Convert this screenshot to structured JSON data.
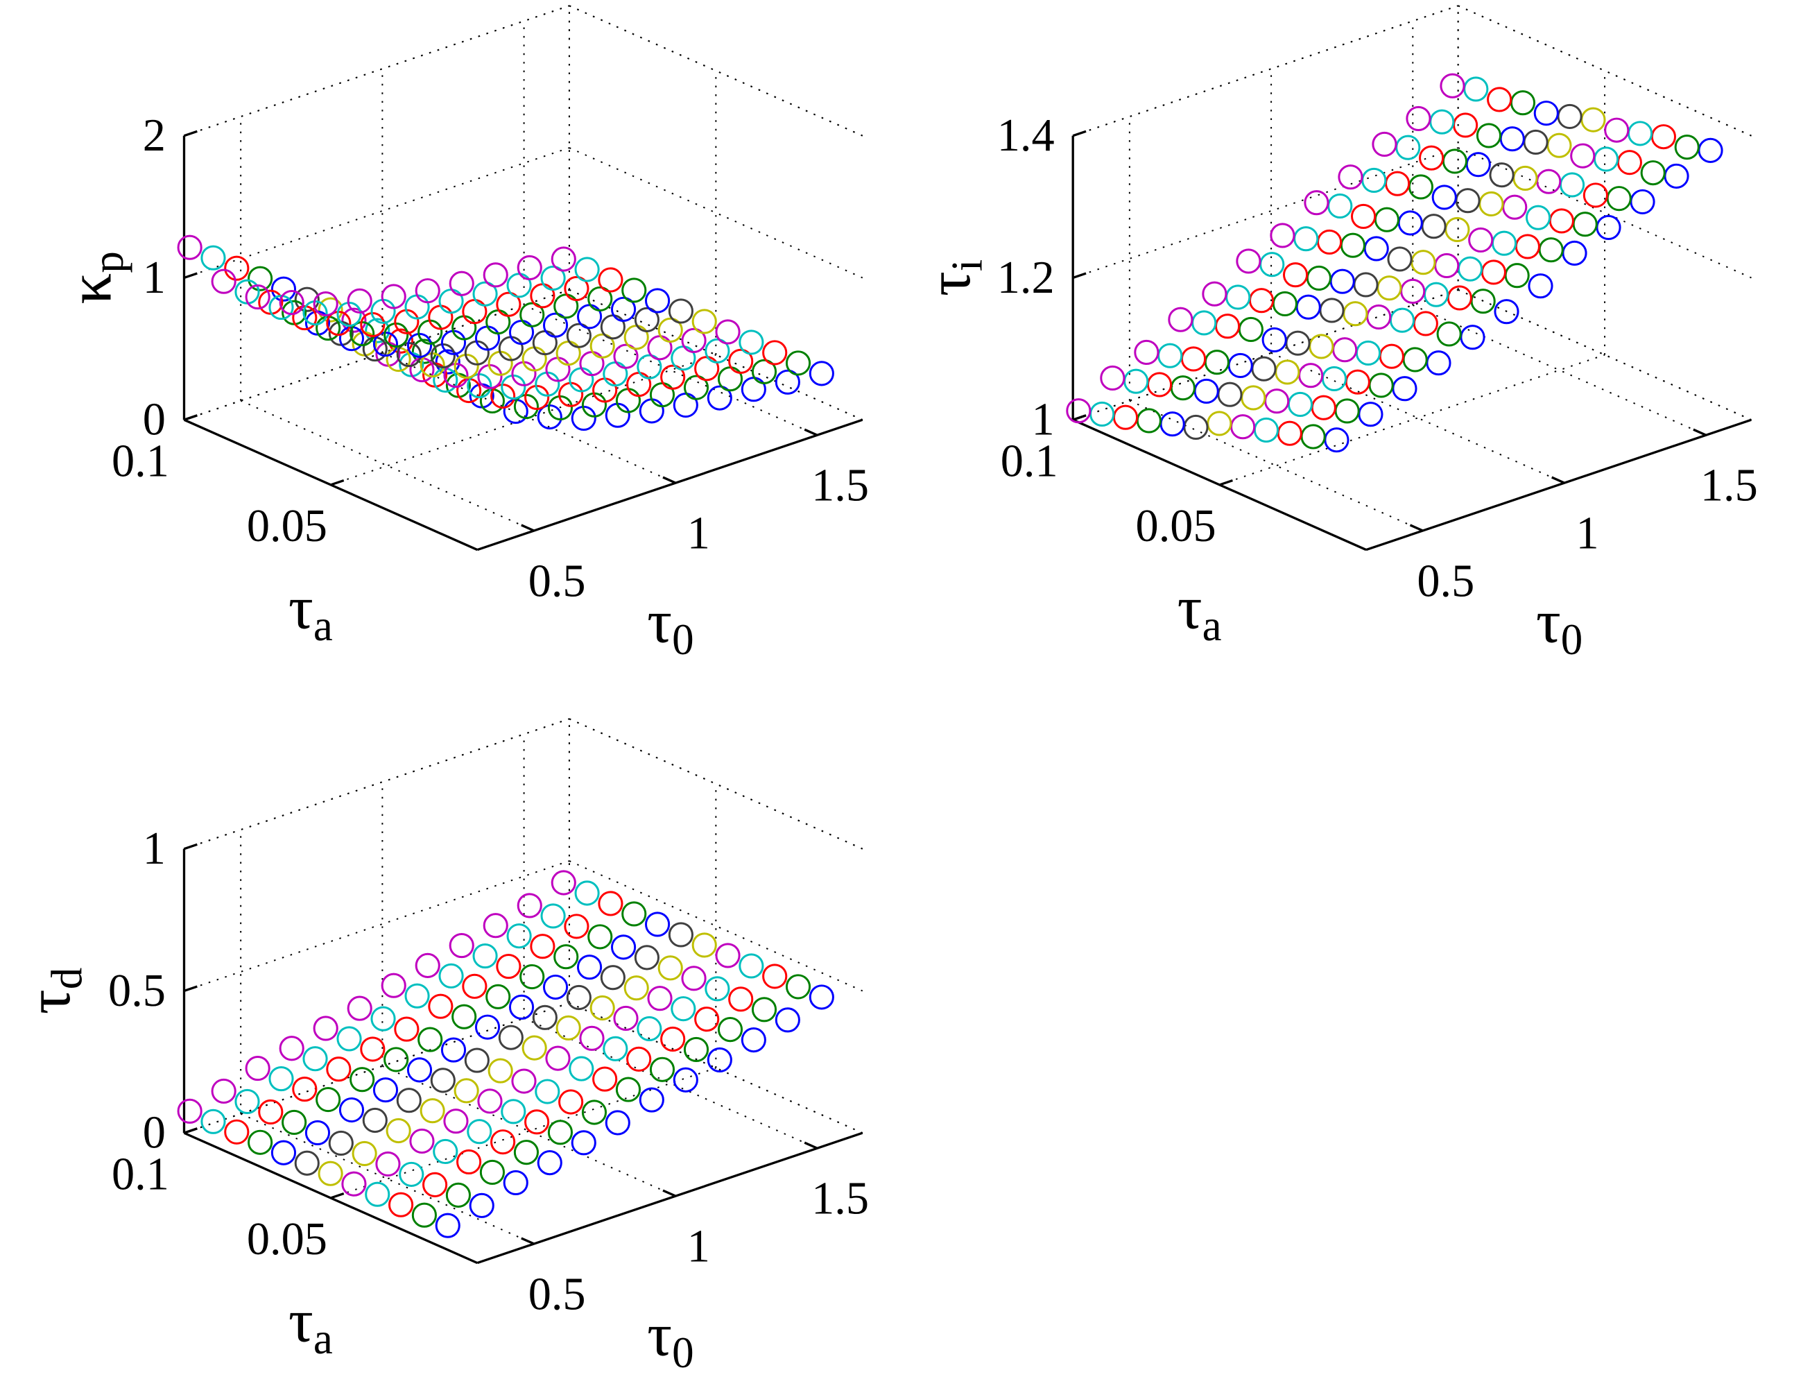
{
  "chart_data": [
    {
      "type": "scatter3d",
      "xlabel": {
        "symbol": "τ",
        "sub": "0"
      },
      "ylabel": {
        "symbol": "τ",
        "sub": "a"
      },
      "zlabel": {
        "symbol": "κ",
        "sub": "p"
      },
      "x": [
        0.32,
        0.44,
        0.56,
        0.68,
        0.8,
        0.92,
        1.04,
        1.16,
        1.28,
        1.4,
        1.52,
        1.64
      ],
      "y": [
        0.012,
        0.02,
        0.028,
        0.036,
        0.044,
        0.052,
        0.06,
        0.068,
        0.076,
        0.084,
        0.092,
        0.1
      ],
      "z": [
        [
          1.2,
          0.88,
          0.69,
          0.57,
          0.48,
          0.42,
          0.37,
          0.33,
          0.3,
          0.28,
          0.25,
          0.23
        ],
        [
          1.2,
          0.88,
          0.69,
          0.57,
          0.48,
          0.42,
          0.37,
          0.33,
          0.3,
          0.28,
          0.25,
          0.23
        ],
        [
          1.2,
          0.88,
          0.69,
          0.57,
          0.48,
          0.42,
          0.37,
          0.33,
          0.3,
          0.28,
          0.25,
          0.23
        ],
        [
          1.2,
          0.88,
          0.69,
          0.57,
          0.48,
          0.42,
          0.37,
          0.33,
          0.3,
          0.28,
          0.25,
          0.23
        ],
        [
          1.2,
          0.88,
          0.69,
          0.57,
          0.48,
          0.42,
          0.37,
          0.33,
          0.3,
          0.28,
          0.25,
          0.23
        ],
        [
          1.2,
          0.88,
          0.69,
          0.57,
          0.48,
          0.42,
          0.37,
          0.33,
          0.3,
          0.28,
          0.25,
          0.23
        ],
        [
          1.2,
          0.88,
          0.69,
          0.57,
          0.48,
          0.42,
          0.37,
          0.33,
          0.3,
          0.28,
          0.25,
          0.23
        ],
        [
          1.2,
          0.88,
          0.69,
          0.57,
          0.48,
          0.42,
          0.37,
          0.33,
          0.3,
          0.28,
          0.25,
          0.23
        ],
        [
          1.2,
          0.88,
          0.69,
          0.57,
          0.48,
          0.42,
          0.37,
          0.33,
          0.3,
          0.28,
          0.25,
          0.23
        ],
        [
          1.2,
          0.88,
          0.69,
          0.57,
          0.48,
          0.42,
          0.37,
          0.33,
          0.3,
          0.28,
          0.25,
          0.23
        ],
        [
          1.2,
          0.88,
          0.69,
          0.57,
          0.48,
          0.42,
          0.37,
          0.33,
          0.3,
          0.28,
          0.25,
          0.23
        ],
        [
          1.2,
          0.88,
          0.69,
          0.57,
          0.48,
          0.42,
          0.37,
          0.33,
          0.3,
          0.28,
          0.25,
          0.23
        ]
      ],
      "colors": [
        "#0000ff",
        "#008000",
        "#ff0000",
        "#00bfbf",
        "#bf00bf",
        "#bfbf00",
        "#404040"
      ],
      "xlim": [
        0.3,
        1.66
      ],
      "ylim": [
        0,
        0.1
      ],
      "zlim": [
        0,
        2
      ],
      "xticks": [
        0.5,
        1,
        1.5
      ],
      "yticks": [
        0.05,
        0.1
      ],
      "zticks": [
        0,
        1,
        2
      ],
      "grid": true
    },
    {
      "type": "scatter3d",
      "xlabel": {
        "symbol": "τ",
        "sub": "0"
      },
      "ylabel": {
        "symbol": "τ",
        "sub": "a"
      },
      "zlabel": {
        "symbol": "τ",
        "sub": "i"
      },
      "x": [
        0.32,
        0.44,
        0.56,
        0.68,
        0.8,
        0.92,
        1.04,
        1.16,
        1.28,
        1.4,
        1.52,
        1.64
      ],
      "y": [
        0.012,
        0.02,
        0.028,
        0.036,
        0.044,
        0.052,
        0.06,
        0.068,
        0.076,
        0.084,
        0.092,
        0.1
      ],
      "z": [
        [
          1.13,
          1.15,
          1.17,
          1.19,
          1.21,
          1.23,
          1.25,
          1.28,
          1.3,
          1.32,
          1.34,
          1.36
        ],
        [
          1.12,
          1.14,
          1.16,
          1.18,
          1.2,
          1.23,
          1.25,
          1.27,
          1.29,
          1.31,
          1.33,
          1.35
        ],
        [
          1.11,
          1.13,
          1.15,
          1.17,
          1.2,
          1.22,
          1.24,
          1.26,
          1.28,
          1.3,
          1.33,
          1.35
        ],
        [
          1.1,
          1.12,
          1.14,
          1.16,
          1.19,
          1.21,
          1.23,
          1.25,
          1.27,
          1.3,
          1.32,
          1.34
        ],
        [
          1.09,
          1.11,
          1.13,
          1.15,
          1.18,
          1.2,
          1.22,
          1.24,
          1.27,
          1.29,
          1.31,
          1.33
        ],
        [
          1.08,
          1.1,
          1.12,
          1.14,
          1.17,
          1.19,
          1.21,
          1.24,
          1.26,
          1.28,
          1.31,
          1.33
        ],
        [
          1.06,
          1.09,
          1.11,
          1.13,
          1.16,
          1.18,
          1.2,
          1.23,
          1.25,
          1.27,
          1.3,
          1.32
        ],
        [
          1.05,
          1.08,
          1.1,
          1.12,
          1.15,
          1.17,
          1.2,
          1.22,
          1.24,
          1.27,
          1.29,
          1.31
        ],
        [
          1.04,
          1.07,
          1.09,
          1.12,
          1.14,
          1.16,
          1.19,
          1.21,
          1.24,
          1.26,
          1.28,
          1.31
        ],
        [
          1.03,
          1.06,
          1.08,
          1.11,
          1.13,
          1.15,
          1.18,
          1.2,
          1.23,
          1.25,
          1.28,
          1.3
        ],
        [
          1.02,
          1.05,
          1.07,
          1.1,
          1.12,
          1.15,
          1.17,
          1.2,
          1.22,
          1.25,
          1.27,
          1.3
        ],
        [
          1.01,
          1.04,
          1.06,
          1.09,
          1.11,
          1.14,
          1.16,
          1.19,
          1.21,
          1.24,
          1.26,
          1.29
        ]
      ],
      "colors": [
        "#0000ff",
        "#008000",
        "#ff0000",
        "#00bfbf",
        "#bf00bf",
        "#bfbf00",
        "#404040"
      ],
      "xlim": [
        0.3,
        1.66
      ],
      "ylim": [
        0,
        0.1
      ],
      "zlim": [
        1,
        1.4
      ],
      "xticks": [
        0.5,
        1,
        1.5
      ],
      "yticks": [
        0.05,
        0.1
      ],
      "zticks": [
        1,
        1.2,
        1.4
      ],
      "grid": true
    },
    {
      "type": "scatter3d",
      "xlabel": {
        "symbol": "τ",
        "sub": "0"
      },
      "ylabel": {
        "symbol": "τ",
        "sub": "a"
      },
      "zlabel": {
        "symbol": "τ",
        "sub": "d"
      },
      "x": [
        0.32,
        0.44,
        0.56,
        0.68,
        0.8,
        0.92,
        1.04,
        1.16,
        1.28,
        1.4,
        1.52,
        1.64
      ],
      "y": [
        0.012,
        0.02,
        0.028,
        0.036,
        0.044,
        0.052,
        0.06,
        0.068,
        0.076,
        0.084,
        0.092,
        0.1
      ],
      "z": [
        [
          0.07,
          0.1,
          0.14,
          0.17,
          0.2,
          0.23,
          0.27,
          0.3,
          0.33,
          0.36,
          0.39,
          0.43
        ],
        [
          0.07,
          0.1,
          0.14,
          0.17,
          0.2,
          0.23,
          0.27,
          0.3,
          0.33,
          0.36,
          0.39,
          0.43
        ],
        [
          0.07,
          0.1,
          0.14,
          0.17,
          0.2,
          0.23,
          0.27,
          0.3,
          0.33,
          0.36,
          0.39,
          0.43
        ],
        [
          0.07,
          0.1,
          0.14,
          0.17,
          0.2,
          0.23,
          0.27,
          0.3,
          0.33,
          0.36,
          0.39,
          0.43
        ],
        [
          0.07,
          0.1,
          0.14,
          0.17,
          0.2,
          0.23,
          0.27,
          0.3,
          0.33,
          0.36,
          0.39,
          0.43
        ],
        [
          0.07,
          0.1,
          0.14,
          0.17,
          0.2,
          0.23,
          0.27,
          0.3,
          0.33,
          0.36,
          0.39,
          0.43
        ],
        [
          0.07,
          0.1,
          0.14,
          0.17,
          0.2,
          0.23,
          0.27,
          0.3,
          0.33,
          0.36,
          0.39,
          0.43
        ],
        [
          0.07,
          0.1,
          0.14,
          0.17,
          0.2,
          0.23,
          0.27,
          0.3,
          0.33,
          0.36,
          0.39,
          0.43
        ],
        [
          0.07,
          0.1,
          0.14,
          0.17,
          0.2,
          0.23,
          0.27,
          0.3,
          0.33,
          0.36,
          0.39,
          0.43
        ],
        [
          0.07,
          0.1,
          0.14,
          0.17,
          0.2,
          0.23,
          0.27,
          0.3,
          0.33,
          0.36,
          0.39,
          0.43
        ],
        [
          0.07,
          0.1,
          0.14,
          0.17,
          0.2,
          0.23,
          0.27,
          0.3,
          0.33,
          0.36,
          0.39,
          0.43
        ],
        [
          0.07,
          0.1,
          0.14,
          0.17,
          0.2,
          0.23,
          0.27,
          0.3,
          0.33,
          0.36,
          0.39,
          0.43
        ]
      ],
      "colors": [
        "#0000ff",
        "#008000",
        "#ff0000",
        "#00bfbf",
        "#bf00bf",
        "#bfbf00",
        "#404040"
      ],
      "xlim": [
        0.3,
        1.66
      ],
      "ylim": [
        0,
        0.1
      ],
      "zlim": [
        0,
        1
      ],
      "xticks": [
        0.5,
        1,
        1.5
      ],
      "yticks": [
        0.05,
        0.1
      ],
      "zticks": [
        0,
        0.5,
        1
      ],
      "grid": true
    }
  ]
}
